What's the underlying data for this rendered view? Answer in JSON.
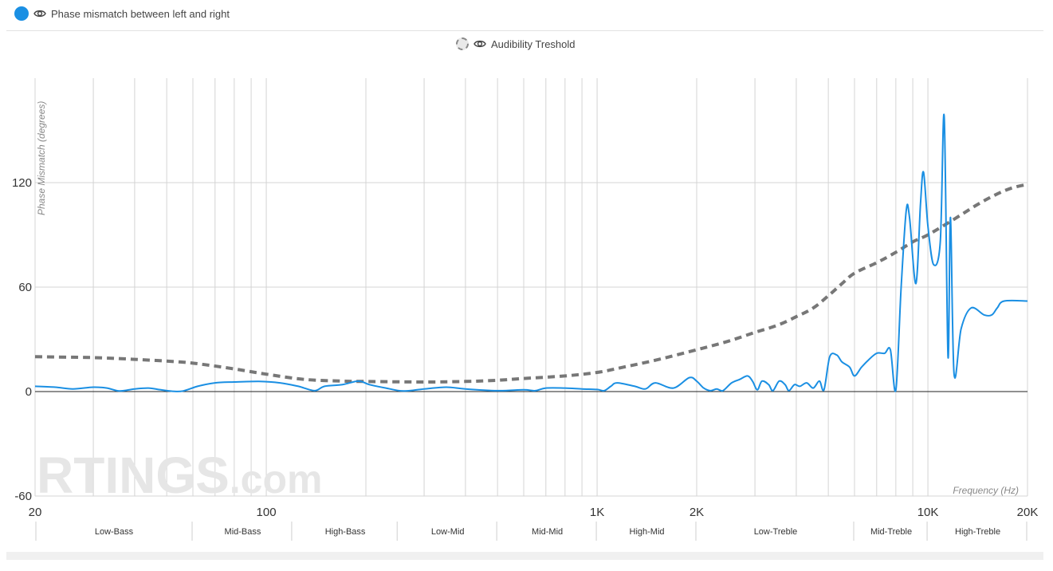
{
  "legend": {
    "primary_label": "Phase mismatch between left and right",
    "primary_color": "#1a8fe3",
    "secondary_label": "Audibility Treshold",
    "secondary_color": "#777777",
    "icon": "eye-icon"
  },
  "watermark": {
    "brand": "RTINGS",
    "suffix": ".com"
  },
  "chart_data": {
    "type": "line",
    "xscale": "log",
    "xlim": [
      20,
      20000
    ],
    "ylim": [
      -60,
      180
    ],
    "ylabel": "Phase Mismatch (degrees)",
    "xlabel": "Frequency (Hz)",
    "x_tick_values": [
      20,
      100,
      1000,
      2000,
      10000,
      20000
    ],
    "x_tick_labels": [
      "20",
      "100",
      "1K",
      "2K",
      "10K",
      "20K"
    ],
    "y_tick_values": [
      -60,
      0,
      60,
      120
    ],
    "y_tick_labels": [
      "-60",
      "0",
      "60",
      "120"
    ],
    "grid": true,
    "bands": [
      {
        "label": "Low-Bass",
        "from": 20,
        "to": 60
      },
      {
        "label": "Mid-Bass",
        "from": 60,
        "to": 120
      },
      {
        "label": "High-Bass",
        "from": 120,
        "to": 250
      },
      {
        "label": "Low-Mid",
        "from": 250,
        "to": 500
      },
      {
        "label": "Mid-Mid",
        "from": 500,
        "to": 1000
      },
      {
        "label": "High-Mid",
        "from": 1000,
        "to": 2000
      },
      {
        "label": "Low-Treble",
        "from": 2000,
        "to": 6000
      },
      {
        "label": "Mid-Treble",
        "from": 6000,
        "to": 10000
      },
      {
        "label": "High-Treble",
        "from": 10000,
        "to": 20000
      }
    ],
    "series": [
      {
        "name": "Phase mismatch between left and right",
        "style": "solid",
        "points": [
          [
            20,
            3
          ],
          [
            23,
            2.5
          ],
          [
            26,
            1.5
          ],
          [
            30,
            2.5
          ],
          [
            33,
            2
          ],
          [
            36,
            0.3
          ],
          [
            40,
            1.5
          ],
          [
            44,
            2
          ],
          [
            48,
            1
          ],
          [
            52,
            0.2
          ],
          [
            56,
            0.3
          ],
          [
            62,
            3
          ],
          [
            70,
            5
          ],
          [
            80,
            5.5
          ],
          [
            95,
            5.8
          ],
          [
            110,
            5
          ],
          [
            125,
            3
          ],
          [
            140,
            0.5
          ],
          [
            150,
            3
          ],
          [
            170,
            4
          ],
          [
            190,
            6
          ],
          [
            205,
            4
          ],
          [
            230,
            2
          ],
          [
            260,
            0.3
          ],
          [
            300,
            1.5
          ],
          [
            350,
            2.5
          ],
          [
            400,
            1.5
          ],
          [
            500,
            0.5
          ],
          [
            600,
            1
          ],
          [
            650,
            0.5
          ],
          [
            700,
            2
          ],
          [
            800,
            2
          ],
          [
            900,
            1.5
          ],
          [
            1000,
            1.2
          ],
          [
            1050,
            0.5
          ],
          [
            1100,
            3
          ],
          [
            1150,
            5
          ],
          [
            1300,
            3
          ],
          [
            1400,
            1.5
          ],
          [
            1500,
            5
          ],
          [
            1700,
            2
          ],
          [
            1900,
            8
          ],
          [
            2000,
            6
          ],
          [
            2100,
            2
          ],
          [
            2200,
            0.5
          ],
          [
            2300,
            1.5
          ],
          [
            2400,
            0.5
          ],
          [
            2550,
            5
          ],
          [
            2700,
            7
          ],
          [
            2850,
            9
          ],
          [
            2950,
            6
          ],
          [
            3050,
            1
          ],
          [
            3150,
            6
          ],
          [
            3300,
            4
          ],
          [
            3400,
            0.5
          ],
          [
            3550,
            6
          ],
          [
            3700,
            4
          ],
          [
            3800,
            0.5
          ],
          [
            3950,
            4
          ],
          [
            4100,
            3
          ],
          [
            4300,
            5
          ],
          [
            4500,
            2
          ],
          [
            4700,
            6
          ],
          [
            4850,
            1
          ],
          [
            5050,
            20
          ],
          [
            5300,
            21
          ],
          [
            5500,
            17
          ],
          [
            5800,
            14
          ],
          [
            6000,
            9
          ],
          [
            6300,
            14
          ],
          [
            6600,
            18
          ],
          [
            7000,
            22
          ],
          [
            7400,
            22
          ],
          [
            7700,
            24
          ],
          [
            8000,
            1
          ],
          [
            8300,
            60
          ],
          [
            8600,
            104
          ],
          [
            8800,
            100
          ],
          [
            9200,
            62
          ],
          [
            9500,
            108
          ],
          [
            9700,
            126
          ],
          [
            10000,
            95
          ],
          [
            10400,
            73
          ],
          [
            10900,
            86
          ],
          [
            11200,
            158
          ],
          [
            11500,
            20
          ],
          [
            11700,
            100
          ],
          [
            12000,
            10
          ],
          [
            12600,
            36
          ],
          [
            13500,
            48
          ],
          [
            14800,
            44
          ],
          [
            15600,
            44
          ],
          [
            16200,
            48
          ],
          [
            17000,
            52
          ],
          [
            20000,
            52
          ]
        ]
      },
      {
        "name": "Audibility Treshold",
        "style": "dashed",
        "points": [
          [
            20,
            20
          ],
          [
            30,
            19.5
          ],
          [
            40,
            18.5
          ],
          [
            55,
            17
          ],
          [
            65,
            15.5
          ],
          [
            80,
            13
          ],
          [
            100,
            10
          ],
          [
            130,
            7
          ],
          [
            170,
            6
          ],
          [
            200,
            5.8
          ],
          [
            300,
            5.5
          ],
          [
            400,
            5.8
          ],
          [
            500,
            6.5
          ],
          [
            600,
            7.5
          ],
          [
            800,
            9
          ],
          [
            1000,
            11
          ],
          [
            1200,
            14
          ],
          [
            1500,
            18
          ],
          [
            2000,
            24
          ],
          [
            2500,
            29
          ],
          [
            3000,
            34
          ],
          [
            3500,
            38
          ],
          [
            4000,
            43
          ],
          [
            4500,
            48
          ],
          [
            5000,
            55
          ],
          [
            5500,
            62
          ],
          [
            6000,
            68
          ],
          [
            7000,
            74
          ],
          [
            8000,
            80
          ],
          [
            9000,
            86
          ],
          [
            10000,
            90
          ],
          [
            12000,
            99
          ],
          [
            14000,
            107
          ],
          [
            16000,
            113
          ],
          [
            18000,
            117
          ],
          [
            20000,
            119
          ]
        ]
      }
    ]
  }
}
